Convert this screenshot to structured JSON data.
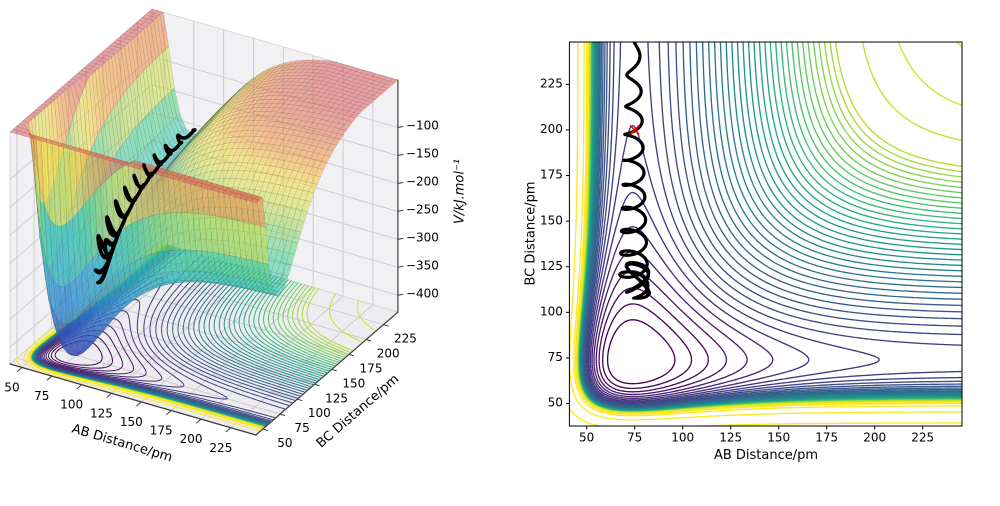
{
  "figure": {
    "background": "#ffffff"
  },
  "chart_data": [
    {
      "type": "surface",
      "plot_id": "pes-3d-surface",
      "title": "",
      "xlabel": "AB Distance/pm",
      "ylabel": "BC Distance/pm",
      "zlabel": "V/kJ.mol⁻¹",
      "xticks": [
        50,
        75,
        100,
        125,
        150,
        175,
        200,
        225
      ],
      "yticks": [
        50,
        75,
        100,
        125,
        150,
        175,
        200,
        225
      ],
      "zticks": [
        -100,
        -150,
        -200,
        -250,
        -300,
        -350,
        -400
      ],
      "ztick_labels": [
        "−100",
        "−150",
        "−200",
        "−250",
        "−300",
        "−350",
        "−400"
      ],
      "xlim": [
        40,
        246
      ],
      "ylim": [
        40,
        246
      ],
      "zlim": [
        -430,
        -15
      ],
      "grid": true,
      "pane_color": "#f1f1f4",
      "pane_color_floor": "#ededf0",
      "grid_color": "#cdcdd2",
      "spine_color": "#3c3c3c",
      "potential": {
        "model": "sum_of_morse",
        "D": 215,
        "re": 74,
        "a": 0.03
      },
      "surface": {
        "alpha": 0.55,
        "clip_max": -15,
        "mesh_n": 44,
        "edge_color": "rgba(70,70,70,0.22)",
        "colormap_stops": [
          [
            0,
            "#2b35b8"
          ],
          [
            0.3,
            "#2f9ad8"
          ],
          [
            0.5,
            "#2fc0b8"
          ],
          [
            0.62,
            "#43cf8c"
          ],
          [
            0.7,
            "#8ed35f"
          ],
          [
            0.78,
            "#d6e04a"
          ],
          [
            0.84,
            "#f5d93d"
          ],
          [
            0.9,
            "#f59f3a"
          ],
          [
            1,
            "#e05c5c"
          ]
        ]
      },
      "floor_contour_projection": true,
      "trajectory": {
        "color": "#000000",
        "linewidth": 3.6
      }
    },
    {
      "type": "contour",
      "plot_id": "pes-2d-contour",
      "title": "",
      "xlabel": "AB Distance/pm",
      "ylabel": "BC Distance/pm",
      "xticks": [
        50,
        75,
        100,
        125,
        150,
        175,
        200,
        225
      ],
      "yticks": [
        50,
        75,
        100,
        125,
        150,
        175,
        200,
        225
      ],
      "xlim": [
        41,
        245.5
      ],
      "ylim": [
        37.7,
        248.2
      ],
      "grid": false,
      "legend": "none",
      "potential": {
        "model": "sum_of_morse",
        "D": 215,
        "re": 74,
        "a": 0.03
      },
      "levels": {
        "spacing": "geometric",
        "min": -380,
        "max": -20,
        "n": 40,
        "wall_extra": [
          -14,
          -9,
          -5,
          -2,
          1,
          6,
          20,
          60,
          180,
          500
        ]
      },
      "colormap": "viridis",
      "viridis_stops": [
        [
          0,
          "#440154"
        ],
        [
          0.1,
          "#482475"
        ],
        [
          0.2,
          "#414487"
        ],
        [
          0.3,
          "#355f8d"
        ],
        [
          0.4,
          "#2a788e"
        ],
        [
          0.5,
          "#21918c"
        ],
        [
          0.6,
          "#22a884"
        ],
        [
          0.7,
          "#44bf70"
        ],
        [
          0.8,
          "#7ad151"
        ],
        [
          0.9,
          "#bddf26"
        ],
        [
          1,
          "#fde725"
        ]
      ],
      "linewidth": 1.35,
      "marker": {
        "x": 75,
        "y": 200,
        "symbol": "x",
        "color": "#ff0000"
      },
      "trajectory": {
        "color": "#000000",
        "linewidth": 3.2,
        "ab_center": 74.5,
        "bc_start": 248,
        "bc_end": 112,
        "cycles": 9.5,
        "phase_power": 1.25,
        "amp_start": 3.0,
        "amp_end": 7.5,
        "wobble_start": 0.8,
        "wobble_end": 4.2,
        "knot": {
          "ab_center": 76.5,
          "ab_amp": 6.0,
          "bc_center": 116,
          "bc_amp": 8.5,
          "loops": 3.3,
          "rise": 3.5
        }
      }
    }
  ]
}
